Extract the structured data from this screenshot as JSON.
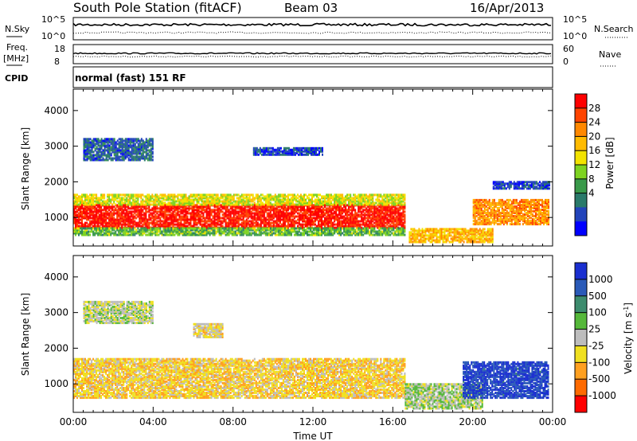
{
  "header": {
    "station": "South Pole Station (fitACF)",
    "beam": "Beam 03",
    "date": "16/Apr/2013"
  },
  "top_panels": {
    "nsky_label": "N.Sky",
    "nsearch_label": "N.Search",
    "nsky_ticks": [
      "10^5",
      "10^0"
    ],
    "freq_label": "Freq.",
    "freq_unit": "[MHz]",
    "freq_ticks": [
      "18",
      "8"
    ],
    "nave_label": "Nave",
    "nave_ticks": [
      "60",
      "0"
    ],
    "cpid_label": "CPID",
    "cpid_value": "normal (fast) 151 RF"
  },
  "power_colorbar": {
    "label": "Power [dB]",
    "ticks": [
      "28",
      "24",
      "20",
      "16",
      "12",
      "8",
      "4"
    ],
    "colors": [
      "#ff0000",
      "#ff4400",
      "#ff8800",
      "#ffbb00",
      "#f3e300",
      "#7ed321",
      "#3a9a4a",
      "#2a7a6a",
      "#2244bb",
      "#0000ff"
    ]
  },
  "velocity_colorbar": {
    "label": "Velocity [m s",
    "label_exp": "-1",
    "label_end": "]",
    "ticks": [
      "1000",
      "500",
      "100",
      "25",
      "-25",
      "-100",
      "-500",
      "-1000"
    ],
    "colors": [
      "#1a2fd0",
      "#2a5ab8",
      "#3d8c6e",
      "#55b83a",
      "#bdbdbd",
      "#f0e020",
      "#ffa020",
      "#ff6a00",
      "#ff0000"
    ]
  },
  "chart_data": [
    {
      "type": "heatmap",
      "panel": "power",
      "ylabel": "Slant Range [km]",
      "yticks": [
        1000,
        2000,
        3000,
        4000
      ],
      "ylim": [
        200,
        4600
      ],
      "xlim": [
        0,
        24
      ],
      "xticks": [
        "00:00",
        "04:00",
        "08:00",
        "12:00",
        "16:00",
        "20:00",
        "00:00"
      ],
      "zlim": [
        0,
        30
      ],
      "bands": [
        {
          "t0": 0.0,
          "t1": 16.6,
          "r0": 700,
          "r1": 1350,
          "z": 28
        },
        {
          "t0": 0.0,
          "t1": 16.6,
          "r0": 1350,
          "r1": 1650,
          "z": 16
        },
        {
          "t0": 0.0,
          "t1": 16.6,
          "r0": 500,
          "r1": 700,
          "z": 12
        },
        {
          "t0": 16.8,
          "t1": 21.0,
          "r0": 300,
          "r1": 700,
          "z": 20
        },
        {
          "t0": 20.0,
          "t1": 23.8,
          "r0": 800,
          "r1": 1500,
          "z": 22
        },
        {
          "t0": 0.5,
          "t1": 4.0,
          "r0": 2600,
          "r1": 3200,
          "z": 6
        },
        {
          "t0": 9.0,
          "t1": 12.5,
          "r0": 2750,
          "r1": 2950,
          "z": 4
        },
        {
          "t0": 21.0,
          "t1": 23.8,
          "r0": 1800,
          "r1": 2000,
          "z": 4
        }
      ]
    },
    {
      "type": "heatmap",
      "panel": "velocity",
      "ylabel": "Slant Range [km]",
      "yticks": [
        1000,
        2000,
        3000,
        4000
      ],
      "ylim": [
        200,
        4600
      ],
      "xlim": [
        0,
        24
      ],
      "xticks": [
        "00:00",
        "04:00",
        "08:00",
        "12:00",
        "16:00",
        "20:00",
        "00:00"
      ],
      "xlabel": "Time UT",
      "zlim": [
        -1000,
        1000
      ],
      "bands": [
        {
          "t0": 0.0,
          "t1": 16.6,
          "r0": 600,
          "r1": 1700,
          "z": -250
        },
        {
          "t0": 16.6,
          "t1": 20.5,
          "r0": 300,
          "r1": 1000,
          "z": 60
        },
        {
          "t0": 19.5,
          "t1": 23.8,
          "r0": 600,
          "r1": 1600,
          "z": 800
        },
        {
          "t0": 0.5,
          "t1": 4.0,
          "r0": 2700,
          "r1": 3300,
          "z": 0
        },
        {
          "t0": 6.0,
          "t1": 7.5,
          "r0": 2300,
          "r1": 2700,
          "z": -150
        }
      ]
    }
  ]
}
